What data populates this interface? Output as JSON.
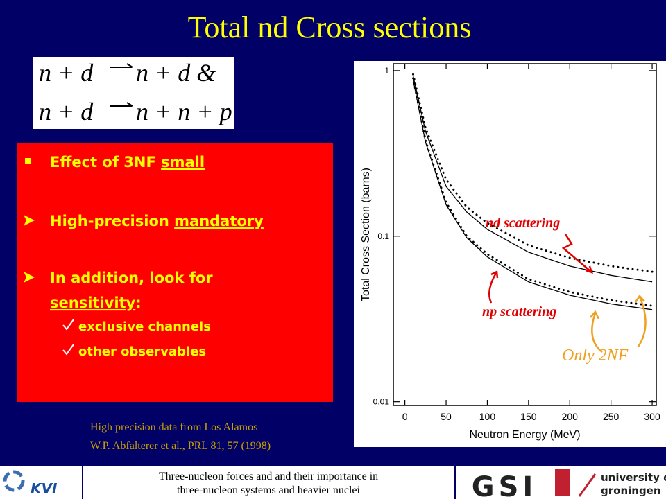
{
  "slide": {
    "title": "Total nd Cross sections",
    "equations": [
      {
        "left": "n + d",
        "right": "n + d &"
      },
      {
        "left": "n + d",
        "right": "n + n + p"
      }
    ],
    "bullets": [
      {
        "marker": "square",
        "lines": [
          [
            {
              "text": "Effect of 3NF "
            },
            {
              "text": "small",
              "underline": true
            }
          ]
        ]
      },
      {
        "marker": "arrow",
        "lines": [
          [
            {
              "text": "High-precision "
            },
            {
              "text": "mandatory",
              "underline": true
            }
          ]
        ]
      },
      {
        "marker": "arrow",
        "lines": [
          [
            {
              "text": "In addition, look for"
            }
          ],
          [
            {
              "text": "sensitivity",
              "underline": true
            },
            {
              "text": ":"
            }
          ]
        ]
      },
      {
        "marker": "check",
        "lines": [
          [
            {
              "text": "exclusive channels"
            }
          ]
        ]
      },
      {
        "marker": "check",
        "lines": [
          [
            {
              "text": "other observables"
            }
          ]
        ]
      }
    ],
    "citation": [
      "High precision data from Los Alamos",
      "W.P. Abfalterer et al., PRL 81, 57 (1998)"
    ],
    "footer": [
      "Three-nucleon forces and and their importance in",
      "three-nucleon systems and heavier nuclei"
    ],
    "logos": {
      "kvi": "KVI",
      "gsi": "GSI",
      "groningen": [
        "university of",
        "groningen"
      ]
    }
  },
  "chart_data": {
    "type": "line",
    "xlabel": "Neutron Energy (MeV)",
    "ylabel": "Total Cross Section (barns)",
    "x": [
      10,
      25,
      50,
      75,
      100,
      150,
      200,
      250,
      300
    ],
    "series": [
      {
        "color": "#000000",
        "style": "dotted",
        "values": [
          0.95,
          0.45,
          0.22,
          0.15,
          0.12,
          0.088,
          0.074,
          0.066,
          0.061
        ]
      },
      {
        "color": "#000000",
        "style": "solid",
        "values": [
          0.93,
          0.43,
          0.2,
          0.14,
          0.11,
          0.08,
          0.066,
          0.058,
          0.053
        ]
      },
      {
        "color": "#000000",
        "style": "dotted",
        "values": [
          0.9,
          0.38,
          0.16,
          0.1,
          0.078,
          0.055,
          0.046,
          0.041,
          0.038
        ]
      },
      {
        "color": "#000000",
        "style": "solid",
        "values": [
          0.88,
          0.37,
          0.155,
          0.098,
          0.075,
          0.053,
          0.044,
          0.039,
          0.036
        ]
      }
    ],
    "xlim": [
      -14,
      305
    ],
    "ylim": [
      0.0095,
      1.1
    ],
    "xticks": [
      0,
      50,
      100,
      150,
      200,
      250,
      300
    ],
    "yticks": [
      1,
      0.1,
      0.01
    ],
    "ylog": true,
    "annotations": [
      {
        "text": "nd scattering",
        "color": "#e00000"
      },
      {
        "text": "np scattering",
        "color": "#e00000"
      },
      {
        "text": "Only 2NF",
        "color": "#f0a020"
      }
    ]
  }
}
